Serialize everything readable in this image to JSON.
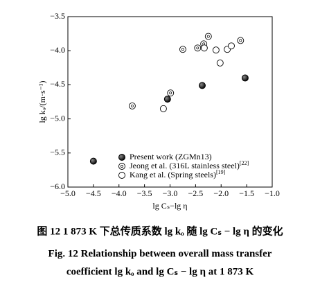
{
  "chart_data": {
    "type": "scatter",
    "xlabel": "lg Cₛ−lg η",
    "ylabel": "lg kₒ/(m·s⁻¹)",
    "xlim": [
      -5.0,
      -1.0
    ],
    "ylim": [
      -6.0,
      -3.5
    ],
    "xticks": [
      {
        "value": -5.0,
        "label": "−5.0"
      },
      {
        "value": -4.5,
        "label": "−4.5"
      },
      {
        "value": -4.0,
        "label": "−4.0"
      },
      {
        "value": -3.5,
        "label": "−3.5"
      },
      {
        "value": -3.0,
        "label": "−3.0"
      },
      {
        "value": -2.5,
        "label": "−2.5"
      },
      {
        "value": -2.0,
        "label": "−2.0"
      },
      {
        "value": -1.5,
        "label": "−1.5"
      },
      {
        "value": -1.0,
        "label": "−1.0"
      }
    ],
    "yticks": [
      {
        "value": -3.5,
        "label": "−3.5"
      },
      {
        "value": -4.0,
        "label": "−4.0"
      },
      {
        "value": -4.5,
        "label": "−4.5"
      },
      {
        "value": -5.0,
        "label": "−5.0"
      },
      {
        "value": -5.5,
        "label": "−5.5"
      },
      {
        "value": -6.0,
        "label": "−6.0"
      }
    ],
    "series": [
      {
        "name": "Present work (ZGMn13)",
        "marker": "filled",
        "color": "#000000",
        "x": [
          -4.5,
          -3.05,
          -2.37,
          -1.53
        ],
        "values": [
          -5.62,
          -4.71,
          -4.51,
          -4.4
        ]
      },
      {
        "name": "Jeong et al. (316L stainless steel)",
        "ref": "[22]",
        "marker": "dotted",
        "color": "#000000",
        "x": [
          -3.74,
          -2.99,
          -2.75,
          -2.46,
          -2.34,
          -2.25,
          -1.62
        ],
        "values": [
          -4.81,
          -4.62,
          -3.98,
          -3.96,
          -3.9,
          -3.79,
          -3.85
        ]
      },
      {
        "name": "Kang et al. (Spring steels)",
        "ref": "[19]",
        "marker": "open",
        "color": "#000000",
        "x": [
          -3.13,
          -2.33,
          -2.1,
          -2.02,
          -1.88,
          -1.8
        ],
        "values": [
          -4.85,
          -3.96,
          -3.99,
          -4.18,
          -3.98,
          -3.93
        ]
      }
    ]
  },
  "caption": {
    "cn": "图 12   1 873 K 下总传质系数 lg kₒ 随 lg Cₛ − lg η 的变化",
    "en1": "Fig. 12   Relationship between overall mass transfer",
    "en2": "coefficient lg kₒ and lg Cₛ − lg η at 1 873 K"
  }
}
